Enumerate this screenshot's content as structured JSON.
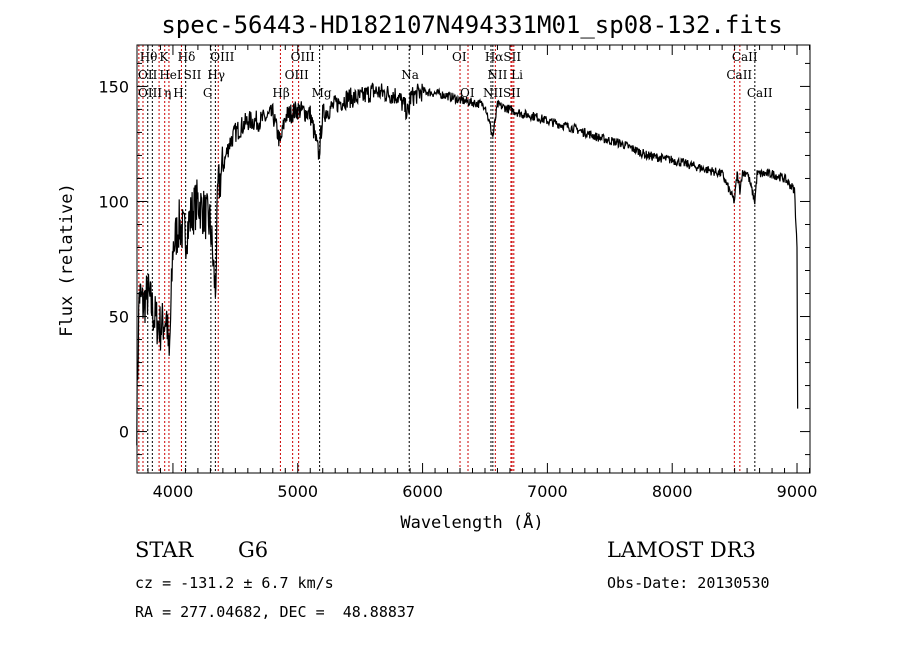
{
  "chart_data": {
    "type": "line",
    "title": "spec-56443-HD182107N494331M01_sp08-132.fits",
    "xlabel": "Wavelength (Å)",
    "ylabel": "Flux (relative)",
    "xlim": [
      3712,
      9104
    ],
    "ylim": [
      -18,
      168
    ],
    "xticks": [
      4000,
      5000,
      6000,
      7000,
      8000,
      9000
    ],
    "yticks": [
      0,
      50,
      100,
      150
    ],
    "grid": false,
    "series": [
      {
        "name": "flux",
        "x": [
          3710,
          3730,
          3760,
          3800,
          3850,
          3900,
          3950,
          3970,
          4000,
          4050,
          4100,
          4150,
          4200,
          4250,
          4300,
          4340,
          4360,
          4400,
          4450,
          4500,
          4600,
          4700,
          4800,
          4860,
          4900,
          5000,
          5100,
          5170,
          5200,
          5300,
          5400,
          5500,
          5600,
          5700,
          5800,
          5890,
          5900,
          6000,
          6100,
          6200,
          6300,
          6400,
          6500,
          6563,
          6600,
          6700,
          6800,
          6900,
          7000,
          7200,
          7400,
          7600,
          7800,
          8000,
          8200,
          8400,
          8498,
          8520,
          8542,
          8560,
          8600,
          8662,
          8680,
          8700,
          8800,
          8900,
          8980,
          9000,
          9005
        ],
        "y": [
          5,
          60,
          55,
          60,
          50,
          45,
          50,
          30,
          80,
          90,
          85,
          95,
          100,
          95,
          90,
          60,
          105,
          115,
          125,
          130,
          135,
          135,
          138,
          125,
          137,
          140,
          138,
          120,
          138,
          142,
          145,
          145,
          148,
          147,
          146,
          138,
          145,
          148,
          147,
          146,
          144,
          143,
          142,
          128,
          142,
          140,
          138,
          137,
          135,
          132,
          128,
          125,
          120,
          118,
          115,
          112,
          100,
          112,
          105,
          112,
          113,
          100,
          112,
          112,
          112,
          110,
          105,
          80,
          10
        ]
      }
    ],
    "line_markers": [
      {
        "wavelength": 3798,
        "label": "Hθ",
        "row": 0,
        "color": "#000000"
      },
      {
        "wavelength": 3934,
        "label": "K",
        "row": 0,
        "color": "#cc0000"
      },
      {
        "wavelength": 4102,
        "label": "Hδ",
        "row": 0,
        "color": "#000000"
      },
      {
        "wavelength": 4363,
        "label": "OIII",
        "row": 0,
        "color": "#cc0000"
      },
      {
        "wavelength": 5007,
        "label": "OIII",
        "row": 0,
        "color": "#cc0000"
      },
      {
        "wavelength": 6300,
        "label": "OI",
        "row": 0,
        "color": "#cc0000"
      },
      {
        "wavelength": 6563,
        "label": "HαSII",
        "row": 0,
        "color": "#000000"
      },
      {
        "wavelength": 8542,
        "label": "CaII",
        "row": 0,
        "color": "#cc0000"
      },
      {
        "wavelength": 3727,
        "label": "OII",
        "row": 1,
        "color": "#cc0000"
      },
      {
        "wavelength": 3889,
        "label": "HeI",
        "row": 1,
        "color": "#cc0000"
      },
      {
        "wavelength": 4068,
        "label": "SII",
        "row": 1,
        "color": "#cc0000"
      },
      {
        "wavelength": 4340,
        "label": "Hγ",
        "row": 1,
        "color": "#000000"
      },
      {
        "wavelength": 4959,
        "label": "OIII",
        "row": 1,
        "color": "#cc0000"
      },
      {
        "wavelength": 5893,
        "label": "Na",
        "row": 1,
        "color": "#000000"
      },
      {
        "wavelength": 6583,
        "label": "NII Li",
        "row": 1,
        "color": "#cc0000"
      },
      {
        "wavelength": 8498,
        "label": "CaII",
        "row": 1,
        "color": "#cc0000"
      },
      {
        "wavelength": 3760,
        "label": "OIII",
        "row": 2,
        "color": "#cc0000"
      },
      {
        "wavelength": 3835,
        "label": "η",
        "row": 2,
        "color": "#000000"
      },
      {
        "wavelength": 3968,
        "label": "H",
        "row": 2,
        "color": "#cc0000"
      },
      {
        "wavelength": 4304,
        "label": "G",
        "row": 2,
        "color": "#000000"
      },
      {
        "wavelength": 4861,
        "label": "Hβ",
        "row": 2,
        "color": "#cc0000"
      },
      {
        "wavelength": 5175,
        "label": "Mg",
        "row": 2,
        "color": "#000000"
      },
      {
        "wavelength": 6364,
        "label": "OI",
        "row": 2,
        "color": "#cc0000"
      },
      {
        "wavelength": 6548,
        "label": "NIISII",
        "row": 2,
        "color": "#000000"
      },
      {
        "wavelength": 6717,
        "label": "",
        "row": 2,
        "color": "#cc0000"
      },
      {
        "wavelength": 6731,
        "label": "",
        "row": 2,
        "color": "#cc0000"
      },
      {
        "wavelength": 6708,
        "label": "",
        "row": 2,
        "color": "#cc0000"
      },
      {
        "wavelength": 8662,
        "label": "CaII",
        "row": 2,
        "color": "#000000"
      }
    ]
  },
  "info": {
    "class": "STAR",
    "subclass": "G6",
    "survey": "LAMOST DR3",
    "cz": "cz = -131.2 ± 6.7 km/s",
    "obs_date": "Obs-Date: 20130530",
    "coords": "RA = 277.04682, DEC =  48.88837"
  }
}
